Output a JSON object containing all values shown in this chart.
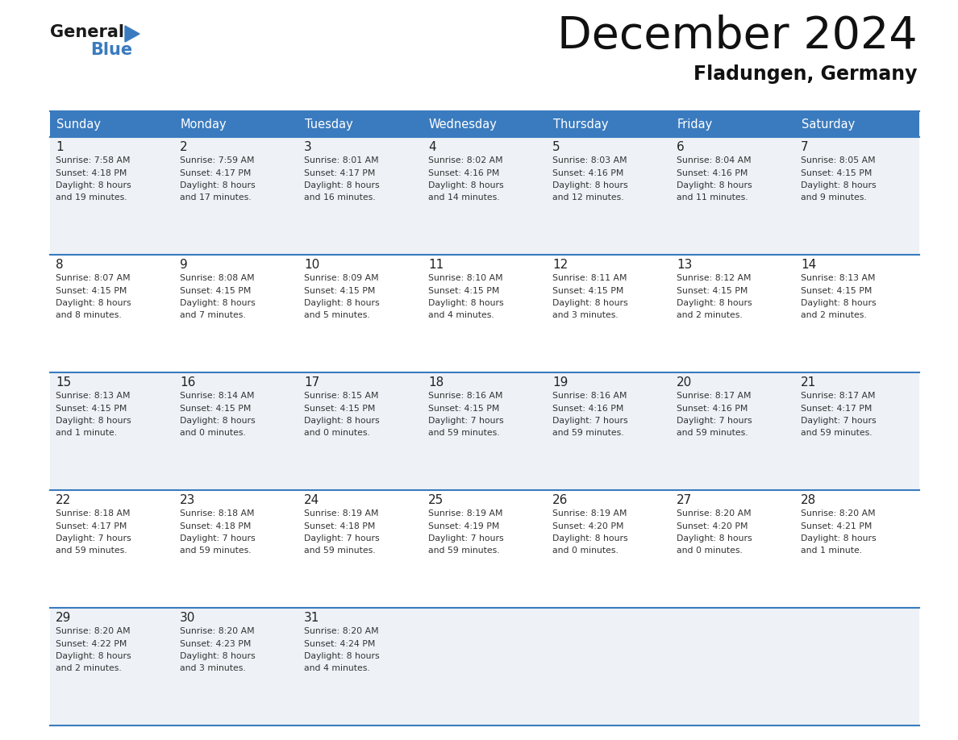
{
  "title": "December 2024",
  "subtitle": "Fladungen, Germany",
  "header_bg_color": "#3a7bbf",
  "header_text_color": "#ffffff",
  "weekdays": [
    "Sunday",
    "Monday",
    "Tuesday",
    "Wednesday",
    "Thursday",
    "Friday",
    "Saturday"
  ],
  "row_bg_even": "#eef2f7",
  "row_bg_odd": "#ffffff",
  "grid_line_color": "#3a7bbf",
  "day_number_color": "#222222",
  "cell_text_color": "#333333",
  "calendar": [
    [
      {
        "day": 1,
        "sunrise": "7:58 AM",
        "sunset": "4:18 PM",
        "daylight": "8 hours and 19 minutes."
      },
      {
        "day": 2,
        "sunrise": "7:59 AM",
        "sunset": "4:17 PM",
        "daylight": "8 hours and 17 minutes."
      },
      {
        "day": 3,
        "sunrise": "8:01 AM",
        "sunset": "4:17 PM",
        "daylight": "8 hours and 16 minutes."
      },
      {
        "day": 4,
        "sunrise": "8:02 AM",
        "sunset": "4:16 PM",
        "daylight": "8 hours and 14 minutes."
      },
      {
        "day": 5,
        "sunrise": "8:03 AM",
        "sunset": "4:16 PM",
        "daylight": "8 hours and 12 minutes."
      },
      {
        "day": 6,
        "sunrise": "8:04 AM",
        "sunset": "4:16 PM",
        "daylight": "8 hours and 11 minutes."
      },
      {
        "day": 7,
        "sunrise": "8:05 AM",
        "sunset": "4:15 PM",
        "daylight": "8 hours and 9 minutes."
      }
    ],
    [
      {
        "day": 8,
        "sunrise": "8:07 AM",
        "sunset": "4:15 PM",
        "daylight": "8 hours and 8 minutes."
      },
      {
        "day": 9,
        "sunrise": "8:08 AM",
        "sunset": "4:15 PM",
        "daylight": "8 hours and 7 minutes."
      },
      {
        "day": 10,
        "sunrise": "8:09 AM",
        "sunset": "4:15 PM",
        "daylight": "8 hours and 5 minutes."
      },
      {
        "day": 11,
        "sunrise": "8:10 AM",
        "sunset": "4:15 PM",
        "daylight": "8 hours and 4 minutes."
      },
      {
        "day": 12,
        "sunrise": "8:11 AM",
        "sunset": "4:15 PM",
        "daylight": "8 hours and 3 minutes."
      },
      {
        "day": 13,
        "sunrise": "8:12 AM",
        "sunset": "4:15 PM",
        "daylight": "8 hours and 2 minutes."
      },
      {
        "day": 14,
        "sunrise": "8:13 AM",
        "sunset": "4:15 PM",
        "daylight": "8 hours and 2 minutes."
      }
    ],
    [
      {
        "day": 15,
        "sunrise": "8:13 AM",
        "sunset": "4:15 PM",
        "daylight": "8 hours and 1 minute."
      },
      {
        "day": 16,
        "sunrise": "8:14 AM",
        "sunset": "4:15 PM",
        "daylight": "8 hours and 0 minutes."
      },
      {
        "day": 17,
        "sunrise": "8:15 AM",
        "sunset": "4:15 PM",
        "daylight": "8 hours and 0 minutes."
      },
      {
        "day": 18,
        "sunrise": "8:16 AM",
        "sunset": "4:15 PM",
        "daylight": "7 hours and 59 minutes."
      },
      {
        "day": 19,
        "sunrise": "8:16 AM",
        "sunset": "4:16 PM",
        "daylight": "7 hours and 59 minutes."
      },
      {
        "day": 20,
        "sunrise": "8:17 AM",
        "sunset": "4:16 PM",
        "daylight": "7 hours and 59 minutes."
      },
      {
        "day": 21,
        "sunrise": "8:17 AM",
        "sunset": "4:17 PM",
        "daylight": "7 hours and 59 minutes."
      }
    ],
    [
      {
        "day": 22,
        "sunrise": "8:18 AM",
        "sunset": "4:17 PM",
        "daylight": "7 hours and 59 minutes."
      },
      {
        "day": 23,
        "sunrise": "8:18 AM",
        "sunset": "4:18 PM",
        "daylight": "7 hours and 59 minutes."
      },
      {
        "day": 24,
        "sunrise": "8:19 AM",
        "sunset": "4:18 PM",
        "daylight": "7 hours and 59 minutes."
      },
      {
        "day": 25,
        "sunrise": "8:19 AM",
        "sunset": "4:19 PM",
        "daylight": "7 hours and 59 minutes."
      },
      {
        "day": 26,
        "sunrise": "8:19 AM",
        "sunset": "4:20 PM",
        "daylight": "8 hours and 0 minutes."
      },
      {
        "day": 27,
        "sunrise": "8:20 AM",
        "sunset": "4:20 PM",
        "daylight": "8 hours and 0 minutes."
      },
      {
        "day": 28,
        "sunrise": "8:20 AM",
        "sunset": "4:21 PM",
        "daylight": "8 hours and 1 minute."
      }
    ],
    [
      {
        "day": 29,
        "sunrise": "8:20 AM",
        "sunset": "4:22 PM",
        "daylight": "8 hours and 2 minutes."
      },
      {
        "day": 30,
        "sunrise": "8:20 AM",
        "sunset": "4:23 PM",
        "daylight": "8 hours and 3 minutes."
      },
      {
        "day": 31,
        "sunrise": "8:20 AM",
        "sunset": "4:24 PM",
        "daylight": "8 hours and 4 minutes."
      },
      null,
      null,
      null,
      null
    ]
  ],
  "logo_text_general": "General",
  "logo_text_blue": "Blue",
  "logo_triangle_color": "#3a7bbf",
  "fig_width": 11.88,
  "fig_height": 9.18,
  "dpi": 100
}
